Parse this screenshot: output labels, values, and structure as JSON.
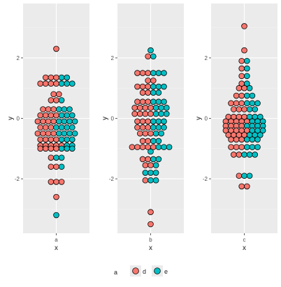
{
  "chart_data": {
    "type": "scatter",
    "subtype": "dotplot",
    "facets": [
      "a",
      "b",
      "c"
    ],
    "xlabel": "x",
    "ylabel": "y",
    "ylim": [
      -3.8,
      3.8
    ],
    "yticks": [
      -2,
      0,
      2
    ],
    "grid": true,
    "colors": {
      "d": "#F8766D",
      "e": "#00BFC4"
    },
    "legend": {
      "title": "a",
      "position": "bottom",
      "items": [
        "d",
        "e"
      ]
    },
    "panels": [
      {
        "facet": "a",
        "bins": [
          {
            "y": 2.3,
            "d": 1,
            "e": 0
          },
          {
            "y": 1.35,
            "d": 3,
            "e": 2
          },
          {
            "y": 1.15,
            "d": 4,
            "e": 3
          },
          {
            "y": 0.8,
            "d": 2,
            "e": 0
          },
          {
            "y": 0.6,
            "d": 2,
            "e": 1
          },
          {
            "y": 0.3,
            "d": 3,
            "e": 3
          },
          {
            "y": 0.1,
            "d": 4,
            "e": 3
          },
          {
            "y": -0.1,
            "d": 4,
            "e": 4
          },
          {
            "y": -0.3,
            "d": 3,
            "e": 4
          },
          {
            "y": -0.5,
            "d": 4,
            "e": 4
          },
          {
            "y": -0.7,
            "d": 4,
            "e": 3
          },
          {
            "y": -0.9,
            "d": 5,
            "e": 2
          },
          {
            "y": -1.0,
            "d": 4,
            "e": 3
          },
          {
            "y": -1.3,
            "d": 1,
            "e": 2
          },
          {
            "y": -1.6,
            "d": 2,
            "e": 1
          },
          {
            "y": -2.1,
            "d": 3,
            "e": 0
          },
          {
            "y": -2.6,
            "d": 1,
            "e": 0
          },
          {
            "y": -3.2,
            "d": 0,
            "e": 1
          }
        ]
      },
      {
        "facet": "b",
        "bins": [
          {
            "y": 2.25,
            "d": 0,
            "e": 1
          },
          {
            "y": 2.05,
            "d": 1,
            "e": 1
          },
          {
            "y": 1.5,
            "d": 3,
            "e": 3
          },
          {
            "y": 1.25,
            "d": 2,
            "e": 0
          },
          {
            "y": 1.05,
            "d": 3,
            "e": 3
          },
          {
            "y": 0.85,
            "d": 2,
            "e": 2
          },
          {
            "y": 0.55,
            "d": 3,
            "e": 3
          },
          {
            "y": 0.35,
            "d": 4,
            "e": 3
          },
          {
            "y": 0.15,
            "d": 4,
            "e": 3
          },
          {
            "y": -0.1,
            "d": 3,
            "e": 3
          },
          {
            "y": -0.3,
            "d": 3,
            "e": 3
          },
          {
            "y": -0.5,
            "d": 3,
            "e": 2
          },
          {
            "y": -0.75,
            "d": 2,
            "e": 2
          },
          {
            "y": -0.95,
            "d": 5,
            "e": 3
          },
          {
            "y": -1.1,
            "d": 0,
            "e": 1
          },
          {
            "y": -1.35,
            "d": 2,
            "e": 2
          },
          {
            "y": -1.55,
            "d": 2,
            "e": 1
          },
          {
            "y": -1.8,
            "d": 0,
            "e": 3
          },
          {
            "y": -2.05,
            "d": 1,
            "e": 2
          },
          {
            "y": -3.1,
            "d": 1,
            "e": 0
          },
          {
            "y": -3.5,
            "d": 1,
            "e": 0
          }
        ]
      },
      {
        "facet": "c",
        "bins": [
          {
            "y": 3.05,
            "d": 1,
            "e": 0
          },
          {
            "y": 2.25,
            "d": 1,
            "e": 0
          },
          {
            "y": 1.9,
            "d": 1,
            "e": 1
          },
          {
            "y": 1.65,
            "d": 1,
            "e": 1
          },
          {
            "y": 1.4,
            "d": 1,
            "e": 1
          },
          {
            "y": 1.15,
            "d": 1,
            "e": 1
          },
          {
            "y": 1.0,
            "d": 2,
            "e": 1
          },
          {
            "y": 0.75,
            "d": 2,
            "e": 2
          },
          {
            "y": 0.5,
            "d": 3,
            "e": 3
          },
          {
            "y": 0.3,
            "d": 3,
            "e": 2
          },
          {
            "y": 0.05,
            "d": 4,
            "e": 3
          },
          {
            "y": -0.1,
            "d": 5,
            "e": 3
          },
          {
            "y": -0.25,
            "d": 4,
            "e": 4
          },
          {
            "y": -0.4,
            "d": 5,
            "e": 3
          },
          {
            "y": -0.55,
            "d": 4,
            "e": 3
          },
          {
            "y": -0.7,
            "d": 3,
            "e": 3
          },
          {
            "y": -0.95,
            "d": 3,
            "e": 3
          },
          {
            "y": -1.2,
            "d": 2,
            "e": 3
          },
          {
            "y": -1.9,
            "d": 1,
            "e": 2
          },
          {
            "y": -2.25,
            "d": 2,
            "e": 0
          }
        ]
      }
    ]
  }
}
